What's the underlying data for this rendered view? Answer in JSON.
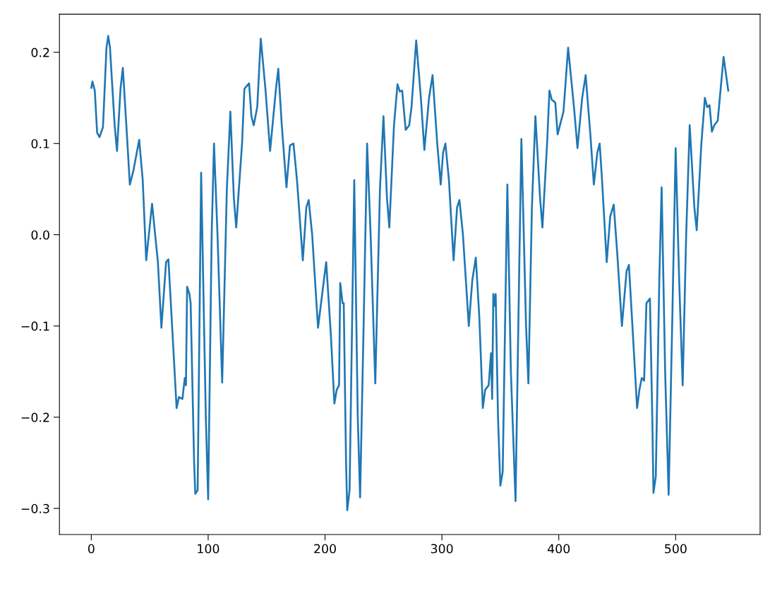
{
  "chart_data": {
    "type": "line",
    "x": [
      0,
      1,
      3,
      5,
      7,
      10,
      13,
      14.5,
      16,
      20,
      22,
      25,
      27,
      30,
      33,
      36,
      41,
      44,
      47,
      52,
      57,
      60,
      64,
      66,
      70,
      73,
      75,
      78,
      80,
      81,
      82,
      84,
      85,
      88,
      89,
      91,
      94,
      98,
      100,
      103,
      105,
      108,
      112,
      116,
      119,
      122,
      124,
      129,
      131,
      133,
      135,
      137,
      139,
      142,
      145,
      149,
      153,
      158,
      160,
      163,
      167,
      170,
      173,
      176,
      181,
      184,
      186,
      189,
      194,
      199,
      201,
      205,
      208,
      210,
      212,
      213,
      215,
      216,
      218,
      219,
      221,
      225,
      228,
      230,
      233,
      236,
      239,
      243,
      247,
      250,
      253,
      255,
      259,
      262,
      264,
      266,
      269,
      272,
      274,
      278,
      282,
      285,
      289,
      292,
      296,
      299,
      301,
      303,
      306,
      310,
      313,
      315,
      318,
      323,
      326,
      329,
      332,
      335,
      337,
      340,
      342,
      343,
      344,
      345,
      346,
      348,
      350,
      352,
      356,
      359,
      363,
      366,
      368,
      372,
      374,
      377,
      380,
      384,
      386,
      390,
      392,
      394,
      397,
      399,
      401,
      404,
      408,
      413,
      416,
      420,
      423,
      427,
      430,
      433,
      435,
      437,
      441,
      444,
      447,
      450,
      454,
      458,
      460,
      463,
      467,
      469,
      471,
      473,
      475,
      478,
      480,
      481,
      483,
      486,
      488,
      491,
      494,
      497,
      500,
      503,
      506,
      509,
      512,
      516,
      518,
      522,
      525,
      527,
      529,
      531,
      533,
      536,
      541,
      545
    ],
    "series": [
      {
        "color": "#1f77b4",
        "values": [
          0.161,
          0.168,
          0.158,
          0.112,
          0.107,
          0.118,
          0.205,
          0.218,
          0.205,
          0.12,
          0.092,
          0.16,
          0.183,
          0.12,
          0.055,
          0.07,
          0.104,
          0.06,
          -0.028,
          0.034,
          -0.03,
          -0.102,
          -0.03,
          -0.027,
          -0.12,
          -0.19,
          -0.178,
          -0.18,
          -0.157,
          -0.165,
          -0.057,
          -0.065,
          -0.075,
          -0.25,
          -0.284,
          -0.28,
          0.068,
          -0.2,
          -0.29,
          0.0,
          0.1,
          0.0,
          -0.162,
          0.05,
          0.135,
          0.04,
          0.008,
          0.1,
          0.16,
          0.163,
          0.166,
          0.13,
          0.12,
          0.14,
          0.215,
          0.16,
          0.092,
          0.16,
          0.182,
          0.12,
          0.052,
          0.098,
          0.1,
          0.06,
          -0.028,
          0.03,
          0.038,
          0.0,
          -0.102,
          -0.05,
          -0.03,
          -0.11,
          -0.185,
          -0.17,
          -0.165,
          -0.053,
          -0.075,
          -0.075,
          -0.25,
          -0.302,
          -0.28,
          0.06,
          -0.2,
          -0.288,
          -0.1,
          0.1,
          0.0,
          -0.163,
          0.05,
          0.13,
          0.04,
          0.008,
          0.12,
          0.165,
          0.157,
          0.158,
          0.115,
          0.12,
          0.14,
          0.213,
          0.15,
          0.093,
          0.15,
          0.175,
          0.1,
          0.055,
          0.09,
          0.1,
          0.06,
          -0.028,
          0.03,
          0.038,
          0.0,
          -0.1,
          -0.05,
          -0.025,
          -0.09,
          -0.19,
          -0.17,
          -0.165,
          -0.13,
          -0.18,
          -0.065,
          -0.078,
          -0.065,
          -0.2,
          -0.275,
          -0.26,
          0.055,
          -0.15,
          -0.292,
          -0.05,
          0.105,
          -0.1,
          -0.163,
          0.03,
          0.13,
          0.04,
          0.008,
          0.1,
          0.158,
          0.148,
          0.145,
          0.11,
          0.12,
          0.135,
          0.205,
          0.14,
          0.095,
          0.15,
          0.175,
          0.11,
          0.055,
          0.09,
          0.1,
          0.06,
          -0.03,
          0.02,
          0.033,
          -0.02,
          -0.1,
          -0.04,
          -0.033,
          -0.1,
          -0.19,
          -0.17,
          -0.157,
          -0.16,
          -0.075,
          -0.07,
          -0.2,
          -0.283,
          -0.265,
          -0.05,
          0.052,
          -0.15,
          -0.285,
          -0.1,
          0.095,
          -0.05,
          -0.165,
          0.0,
          0.12,
          0.03,
          0.005,
          0.1,
          0.15,
          0.14,
          0.142,
          0.113,
          0.12,
          0.125,
          0.195,
          0.158
        ]
      }
    ],
    "xlim": [
      -27.25,
      572.25
    ],
    "ylim": [
      -0.3286,
      0.2418
    ],
    "xticks": [
      0,
      100,
      200,
      300,
      400,
      500
    ],
    "yticks": [
      {
        "value": -0.3,
        "label": "−0.3"
      },
      {
        "value": -0.2,
        "label": "−0.2"
      },
      {
        "value": -0.1,
        "label": "−0.1"
      },
      {
        "value": 0,
        "label": "0.0"
      },
      0.1,
      0.2
    ]
  }
}
